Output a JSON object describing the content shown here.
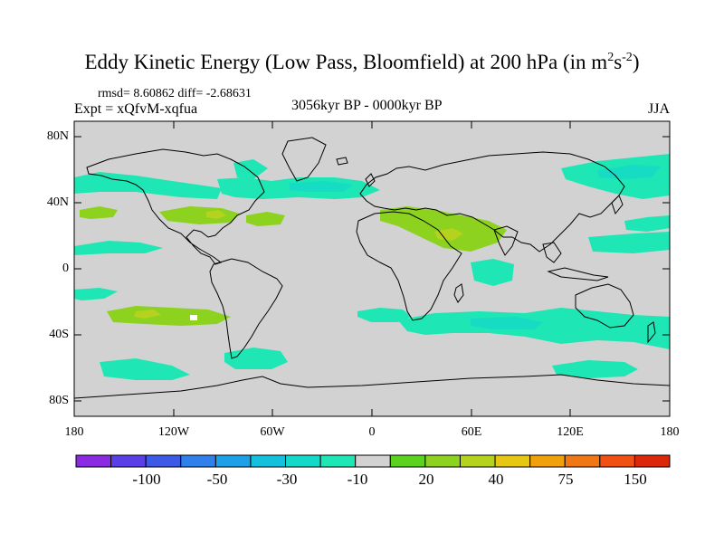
{
  "title": {
    "main": "Eddy Kinetic Energy (Low Pass, Bloomfield) at 200 hPa (in m",
    "sup1": "2",
    "mid": "s",
    "sup2": "-2",
    "end": ")"
  },
  "stats": "rmsd= 8.60862 diff= -2.68631",
  "experiment": "Expt = xQfvM-xqfua",
  "period": "3056kyr BP - 0000kyr BP",
  "season": "JJA",
  "map": {
    "land_color": "#d2d2d2",
    "coast_color": "#000000",
    "y_ticks": [
      "80N",
      "40N",
      "0",
      "40S",
      "80S"
    ],
    "x_ticks": [
      "180",
      "120W",
      "60W",
      "0",
      "60E",
      "120E",
      "180"
    ]
  },
  "colorbar": {
    "colors": [
      "#8a2be2",
      "#5a3ee6",
      "#3c5ae6",
      "#2f80ea",
      "#1ea0e6",
      "#15c0dc",
      "#14d9c8",
      "#1ee6b4",
      "#d2d2d2",
      "#5ad21e",
      "#8cd21e",
      "#b4d21e",
      "#e6c814",
      "#f0a00a",
      "#f07814",
      "#f05014",
      "#dc280a"
    ],
    "labels": [
      "-100",
      "-50",
      "-30",
      "-10",
      "20",
      "40",
      "75",
      "150"
    ]
  }
}
